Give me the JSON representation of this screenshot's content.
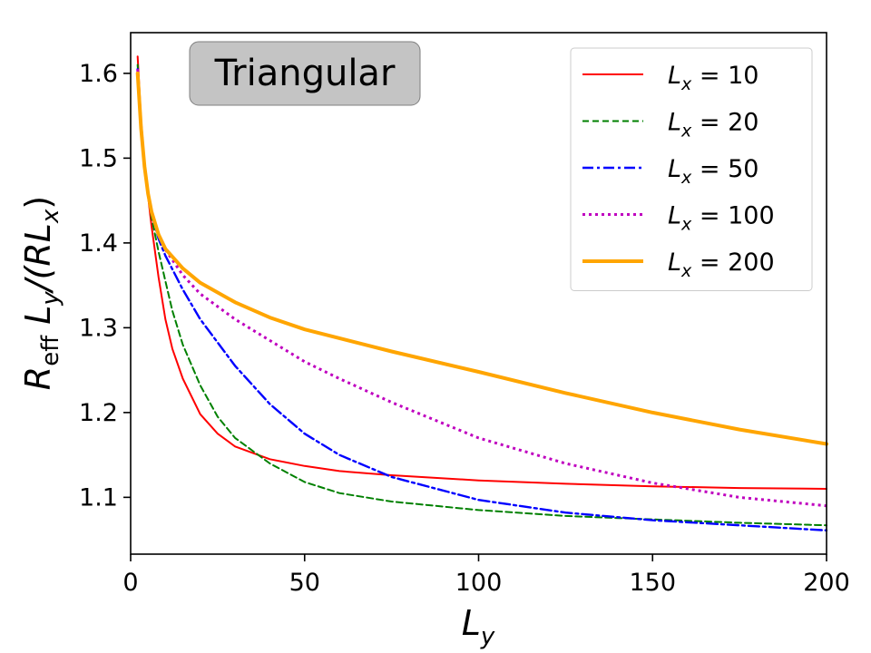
{
  "chart_data": {
    "type": "line",
    "annotation": "Triangular",
    "xlabel_main": "L",
    "xlabel_sub": "y",
    "ylabel_parts": [
      {
        "t": "R",
        "s": "n"
      },
      {
        "t": "eff",
        "s": "sub"
      },
      {
        "t": " L",
        "s": "n"
      },
      {
        "t": "y",
        "s": "sub"
      },
      {
        "t": "/(RL",
        "s": "n"
      },
      {
        "t": "x",
        "s": "sub"
      },
      {
        "t": ")",
        "s": "n"
      }
    ],
    "xlim": [
      0,
      200
    ],
    "ylim": [
      1.033,
      1.648
    ],
    "xticks": [
      0,
      50,
      100,
      150,
      200
    ],
    "yticks": [
      1.1,
      1.2,
      1.3,
      1.4,
      1.5,
      1.6
    ],
    "ytick_labels": [
      "1.1",
      "1.2",
      "1.3",
      "1.4",
      "1.5",
      "1.6"
    ],
    "grid": false,
    "legend_position": "top-right",
    "legend_prefix": "L",
    "legend_sub": "x",
    "series": [
      {
        "name": "L_x = 10",
        "legend_value": "= 10",
        "color": "#ff0000",
        "dash": "solid",
        "width": 2,
        "x": [
          2,
          3,
          4,
          5,
          6,
          8,
          10,
          12,
          15,
          20,
          25,
          30,
          40,
          50,
          60,
          75,
          100,
          125,
          150,
          175,
          200
        ],
        "y": [
          1.62,
          1.545,
          1.495,
          1.455,
          1.42,
          1.36,
          1.31,
          1.275,
          1.24,
          1.198,
          1.175,
          1.16,
          1.145,
          1.137,
          1.131,
          1.126,
          1.12,
          1.116,
          1.113,
          1.111,
          1.11
        ]
      },
      {
        "name": "L_x = 20",
        "legend_value": "= 20",
        "color": "#008000",
        "dash": "dashed",
        "width": 2,
        "x": [
          2,
          3,
          4,
          5,
          6,
          8,
          10,
          12,
          15,
          20,
          25,
          30,
          40,
          50,
          60,
          75,
          100,
          125,
          150,
          175,
          200
        ],
        "y": [
          1.61,
          1.535,
          1.49,
          1.455,
          1.43,
          1.39,
          1.355,
          1.32,
          1.28,
          1.232,
          1.195,
          1.17,
          1.14,
          1.118,
          1.105,
          1.095,
          1.085,
          1.078,
          1.074,
          1.07,
          1.067
        ]
      },
      {
        "name": "L_x = 50",
        "legend_value": "= 50",
        "color": "#0000ff",
        "dash": "dashdot",
        "width": 2.4,
        "x": [
          2,
          3,
          4,
          5,
          6,
          8,
          10,
          15,
          20,
          30,
          40,
          50,
          60,
          75,
          100,
          125,
          150,
          175,
          200
        ],
        "y": [
          1.605,
          1.535,
          1.49,
          1.458,
          1.435,
          1.405,
          1.385,
          1.345,
          1.31,
          1.255,
          1.21,
          1.175,
          1.15,
          1.124,
          1.097,
          1.082,
          1.073,
          1.067,
          1.061
        ]
      },
      {
        "name": "L_x = 100",
        "legend_value": "= 100",
        "color": "#bf00bf",
        "dash": "dotted",
        "width": 3,
        "x": [
          2,
          3,
          4,
          5,
          6,
          8,
          10,
          15,
          20,
          30,
          40,
          50,
          60,
          75,
          100,
          125,
          150,
          175,
          200
        ],
        "y": [
          1.605,
          1.535,
          1.49,
          1.458,
          1.437,
          1.41,
          1.392,
          1.362,
          1.34,
          1.31,
          1.285,
          1.26,
          1.24,
          1.212,
          1.17,
          1.14,
          1.117,
          1.1,
          1.09
        ]
      },
      {
        "name": "L_x = 200",
        "legend_value": "= 200",
        "color": "#ffa500",
        "dash": "solid",
        "width": 4,
        "x": [
          2,
          3,
          4,
          5,
          6,
          8,
          10,
          15,
          20,
          30,
          40,
          50,
          75,
          100,
          125,
          150,
          175,
          200
        ],
        "y": [
          1.6,
          1.535,
          1.49,
          1.458,
          1.437,
          1.41,
          1.393,
          1.37,
          1.353,
          1.33,
          1.312,
          1.298,
          1.272,
          1.248,
          1.223,
          1.2,
          1.18,
          1.163
        ]
      }
    ]
  }
}
